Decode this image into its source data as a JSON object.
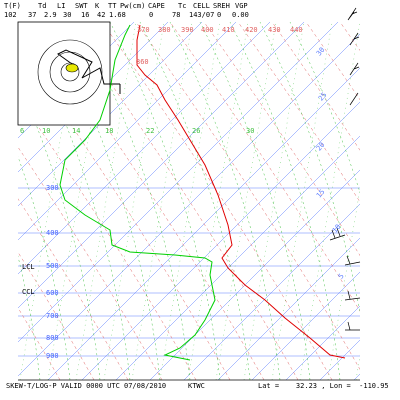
{
  "header": {
    "labels": [
      "T(F)",
      "Td",
      "LI",
      "SWT",
      "K",
      "TT",
      "Pw(cm)",
      "CAPE",
      "Tc",
      "CELL",
      "SREH",
      "VGP"
    ],
    "values": [
      "102",
      "37",
      "2.9",
      "30",
      "16",
      "42",
      "1.68",
      "0",
      "78",
      "143/07",
      "0",
      "0.00"
    ]
  },
  "pressure_labels": [
    "300",
    "400",
    "500",
    "600",
    "700",
    "800",
    "900"
  ],
  "level_labels": [
    "LCL",
    "CCL"
  ],
  "temperature_labels": [
    "6",
    "10",
    "14",
    "18",
    "22",
    "26",
    "30"
  ],
  "theta_labels": [
    "360",
    "370",
    "380",
    "390",
    "400",
    "410",
    "420",
    "430",
    "440"
  ],
  "mixing_labels": [
    "30",
    "25",
    "20",
    "15",
    "10",
    "5"
  ],
  "footer": {
    "title": "SKEW-T/LOG-P VALID 0000 UTC 07/08/2010",
    "station": "KTWC",
    "location": "Lat =    32.23 , Lon =  -110.95"
  }
}
